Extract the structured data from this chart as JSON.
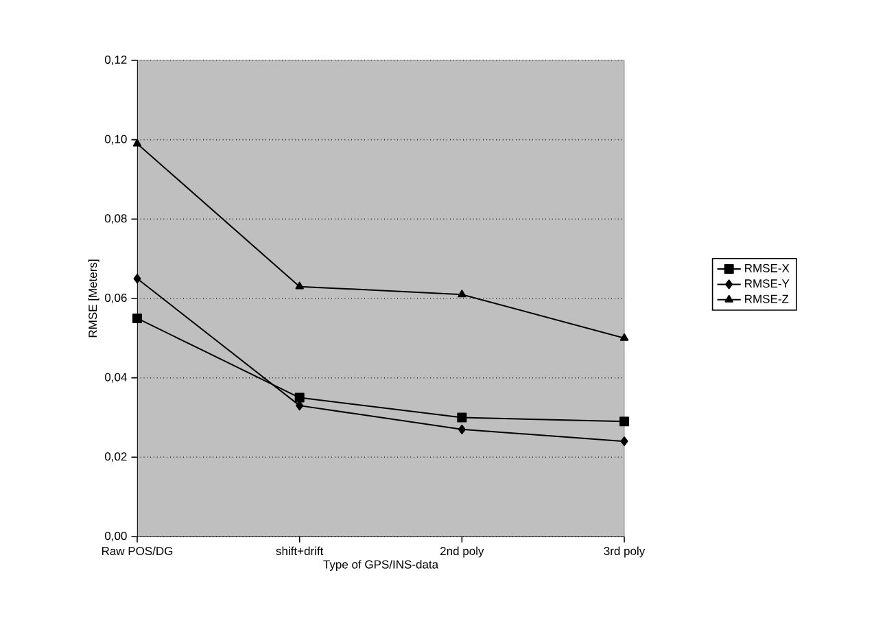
{
  "chart_data": {
    "type": "line",
    "xlabel": "Type of GPS/INS-data",
    "ylabel": "RMSE  [Meters]",
    "categories": [
      "Raw POS/DG",
      "shift+drift",
      "2nd poly",
      "3rd poly"
    ],
    "series": [
      {
        "name": "RMSE-X",
        "color": "#000000",
        "marker": "square",
        "values": [
          0.055,
          0.035,
          0.03,
          0.029
        ]
      },
      {
        "name": "RMSE-Y",
        "color": "#000000",
        "marker": "diamond",
        "values": [
          0.065,
          0.033,
          0.027,
          0.024
        ]
      },
      {
        "name": "RMSE-Z",
        "color": "#000000",
        "marker": "triangle",
        "values": [
          0.099,
          0.063,
          0.061,
          0.05
        ]
      }
    ],
    "ylim": [
      0,
      0.12
    ],
    "yticks": [
      {
        "value": 0,
        "label": "0,00"
      },
      {
        "value": 0.02,
        "label": "0,02"
      },
      {
        "value": 0.04,
        "label": "0,04"
      },
      {
        "value": 0.06,
        "label": "0,06"
      },
      {
        "value": 0.08,
        "label": "0,08"
      },
      {
        "value": 0.1,
        "label": "0,10"
      },
      {
        "value": 0.12,
        "label": "0,12"
      }
    ],
    "grid": "y",
    "legend": "right",
    "line_style": "solid"
  }
}
